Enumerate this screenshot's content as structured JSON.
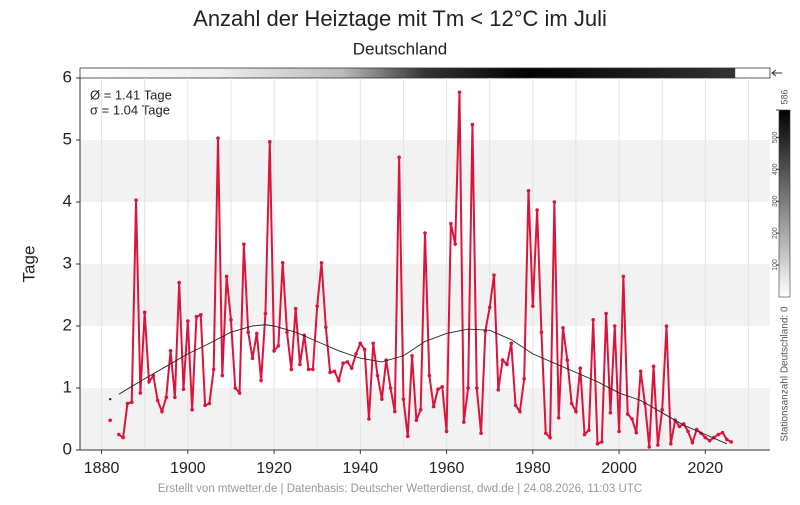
{
  "chart_data": {
    "type": "line",
    "title": "Anzahl der Heiztage mit Tm < 12°C im Juli",
    "subtitle": "Deutschland",
    "y_label": "Tage",
    "annotations": [
      "Ø = 1.41 Tage",
      "σ = 1.04 Tage"
    ],
    "footer": "Erstellt von mtwetter.de | Datenbasis: Deutscher Wetterdienst, dwd.de | 24.08.2026, 11:03 UTC",
    "colorbar": {
      "label": "Stationsanzahl Deutschland: 0",
      "lim": [
        0,
        586
      ],
      "ticks": [
        100,
        200,
        300,
        400,
        500,
        586
      ]
    },
    "xlim": [
      1875,
      2035
    ],
    "xticks": [
      1880,
      1900,
      1920,
      1940,
      1960,
      1980,
      2000,
      2020
    ],
    "ylim": [
      0,
      6
    ],
    "yticks": [
      0,
      1,
      2,
      3,
      4,
      5,
      6
    ],
    "grid": true,
    "series": [
      {
        "name": "Heiztage",
        "color": "#dc143c",
        "x": [
          1882,
          1883,
          1884,
          1885,
          1886,
          1887,
          1888,
          1889,
          1890,
          1891,
          1892,
          1893,
          1894,
          1895,
          1896,
          1897,
          1898,
          1899,
          1900,
          1901,
          1902,
          1903,
          1904,
          1905,
          1906,
          1907,
          1908,
          1909,
          1910,
          1911,
          1912,
          1913,
          1914,
          1915,
          1916,
          1917,
          1918,
          1919,
          1920,
          1921,
          1922,
          1923,
          1924,
          1925,
          1926,
          1927,
          1928,
          1929,
          1930,
          1931,
          1932,
          1933,
          1934,
          1935,
          1936,
          1937,
          1938,
          1939,
          1940,
          1941,
          1942,
          1943,
          1944,
          1945,
          1946,
          1947,
          1948,
          1949,
          1950,
          1951,
          1952,
          1953,
          1954,
          1955,
          1956,
          1957,
          1958,
          1959,
          1960,
          1961,
          1962,
          1963,
          1964,
          1965,
          1966,
          1967,
          1968,
          1969,
          1970,
          1971,
          1972,
          1973,
          1974,
          1975,
          1976,
          1977,
          1978,
          1979,
          1980,
          1981,
          1982,
          1983,
          1984,
          1985,
          1986,
          1987,
          1988,
          1989,
          1990,
          1991,
          1992,
          1993,
          1994,
          1995,
          1996,
          1997,
          1998,
          1999,
          2000,
          2001,
          2002,
          2003,
          2004,
          2005,
          2006,
          2007,
          2008,
          2009,
          2010,
          2011,
          2012,
          2013,
          2014,
          2015,
          2016,
          2017,
          2018,
          2019,
          2020,
          2021,
          2022,
          2023,
          2024,
          2025,
          2026
        ],
        "values": [
          0.48,
          null,
          0.25,
          0.2,
          0.75,
          0.77,
          4.03,
          0.92,
          2.22,
          1.1,
          1.2,
          0.8,
          0.62,
          0.85,
          1.6,
          0.85,
          2.7,
          0.98,
          2.08,
          0.65,
          2.15,
          2.18,
          0.72,
          0.75,
          1.3,
          5.03,
          1.2,
          2.8,
          2.1,
          1.0,
          0.92,
          3.32,
          1.9,
          1.48,
          1.88,
          1.12,
          2.2,
          4.97,
          1.6,
          1.68,
          3.02,
          1.9,
          1.3,
          2.28,
          1.38,
          1.85,
          1.3,
          1.3,
          2.32,
          3.02,
          1.98,
          1.25,
          1.27,
          1.12,
          1.4,
          1.42,
          1.32,
          1.55,
          1.72,
          1.62,
          0.5,
          1.72,
          1.2,
          0.82,
          1.45,
          1.0,
          0.62,
          4.72,
          0.82,
          0.22,
          1.52,
          0.48,
          0.65,
          3.5,
          1.2,
          0.7,
          0.98,
          1.02,
          0.3,
          3.65,
          3.32,
          5.77,
          0.45,
          1.0,
          5.25,
          1.0,
          0.27,
          1.92,
          2.3,
          2.82,
          0.97,
          1.45,
          1.38,
          1.72,
          0.72,
          0.62,
          1.15,
          4.18,
          2.32,
          3.87,
          1.9,
          0.27,
          0.2,
          4.0,
          0.52,
          1.97,
          1.45,
          0.75,
          0.62,
          1.32,
          0.25,
          0.32,
          2.1,
          0.1,
          0.13,
          2.2,
          0.6,
          2.0,
          0.3,
          2.8,
          0.58,
          0.5,
          0.28,
          1.27,
          0.75,
          0.05,
          1.35,
          0.08,
          0.65,
          2.0,
          0.1,
          0.48,
          0.38,
          0.42,
          0.3,
          0.12,
          0.33,
          0.27,
          0.2,
          0.15,
          0.2,
          0.25,
          0.28,
          0.17,
          0.13
        ]
      },
      {
        "name": "Trend",
        "color": "#222222",
        "x": [
          1882,
          1883,
          1884,
          1890,
          1895,
          1900,
          1905,
          1910,
          1915,
          1918,
          1920,
          1925,
          1930,
          1935,
          1940,
          1945,
          1950,
          1955,
          1960,
          1965,
          1970,
          1975,
          1980,
          1985,
          1990,
          1995,
          2000,
          2005,
          2010,
          2015,
          2020,
          2025
        ],
        "values": [
          0.82,
          null,
          0.9,
          1.15,
          1.35,
          1.55,
          1.72,
          1.9,
          2.0,
          2.02,
          2.0,
          1.9,
          1.75,
          1.6,
          1.48,
          1.42,
          1.52,
          1.75,
          1.88,
          1.95,
          1.93,
          1.78,
          1.55,
          1.4,
          1.25,
          1.1,
          0.92,
          0.8,
          0.6,
          0.4,
          0.25,
          0.1
        ]
      }
    ]
  }
}
